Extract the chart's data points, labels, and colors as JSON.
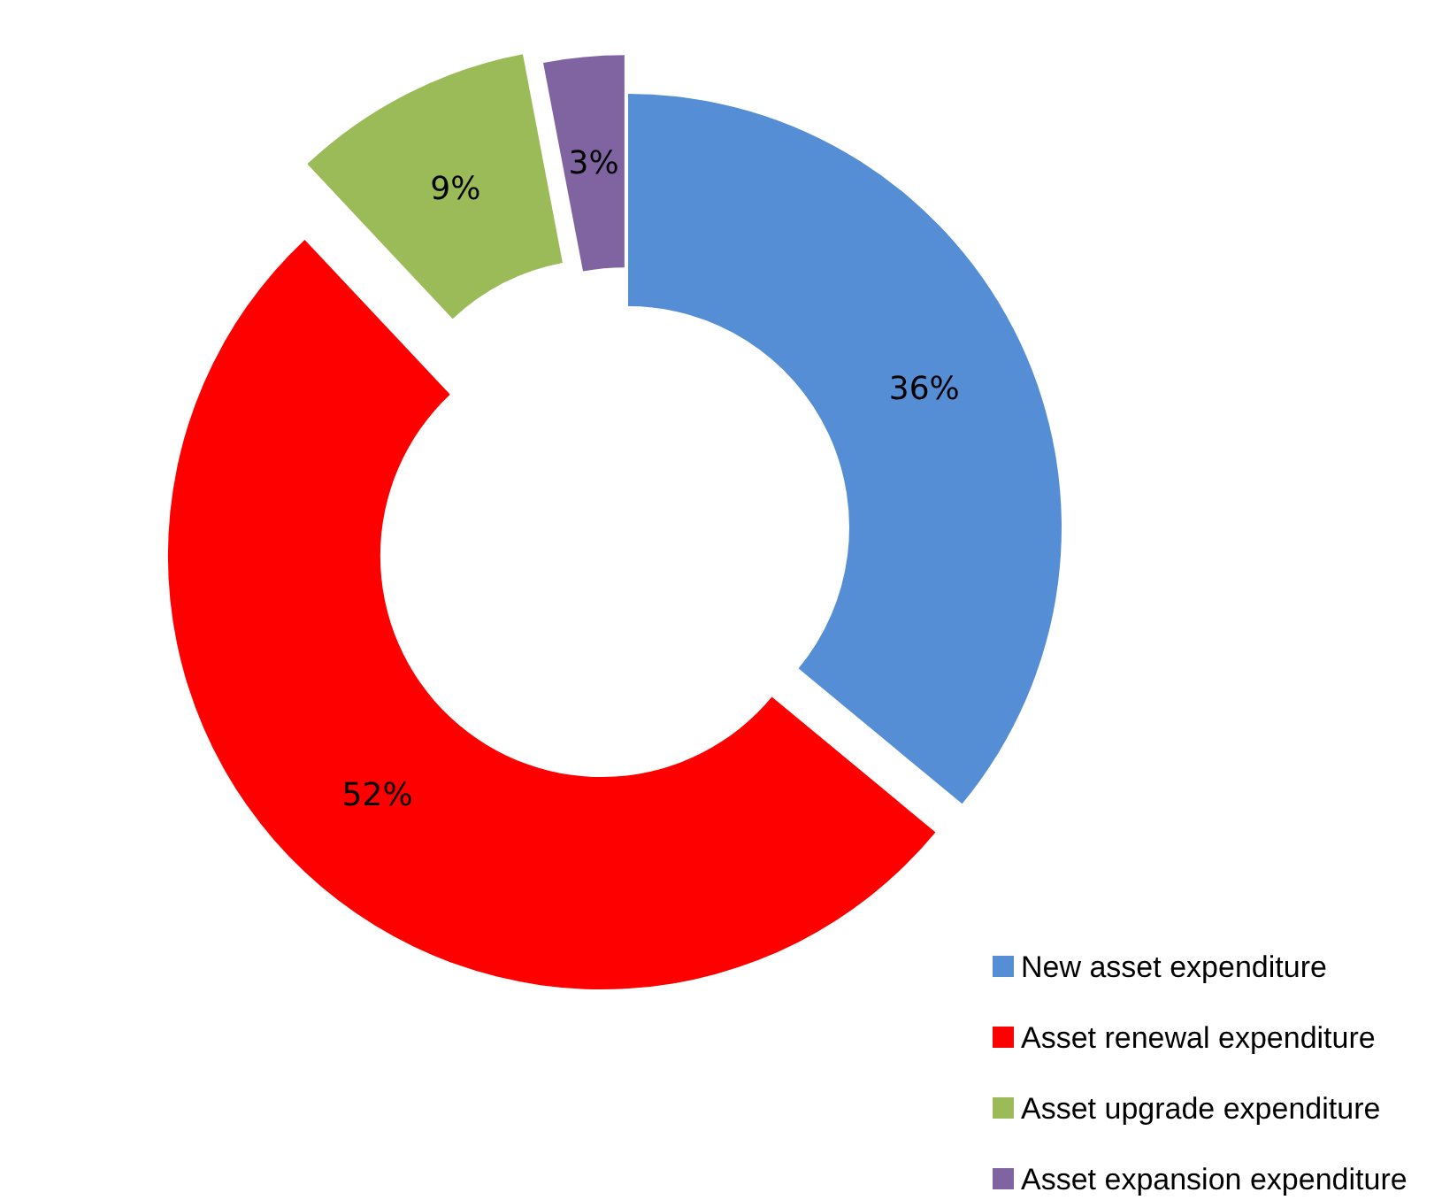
{
  "chart_data": {
    "type": "donut",
    "categories": [
      "New asset expenditure",
      "Asset renewal expenditure",
      "Asset upgrade expenditure",
      "Asset expansion expenditure"
    ],
    "values": [
      36,
      52,
      9,
      3
    ],
    "colors": [
      "#558ed5",
      "#ff0000",
      "#9bbb59",
      "#8064a2"
    ],
    "value_labels": [
      "36%",
      "52%",
      "9%",
      "3%"
    ],
    "legend": "bottom right"
  }
}
